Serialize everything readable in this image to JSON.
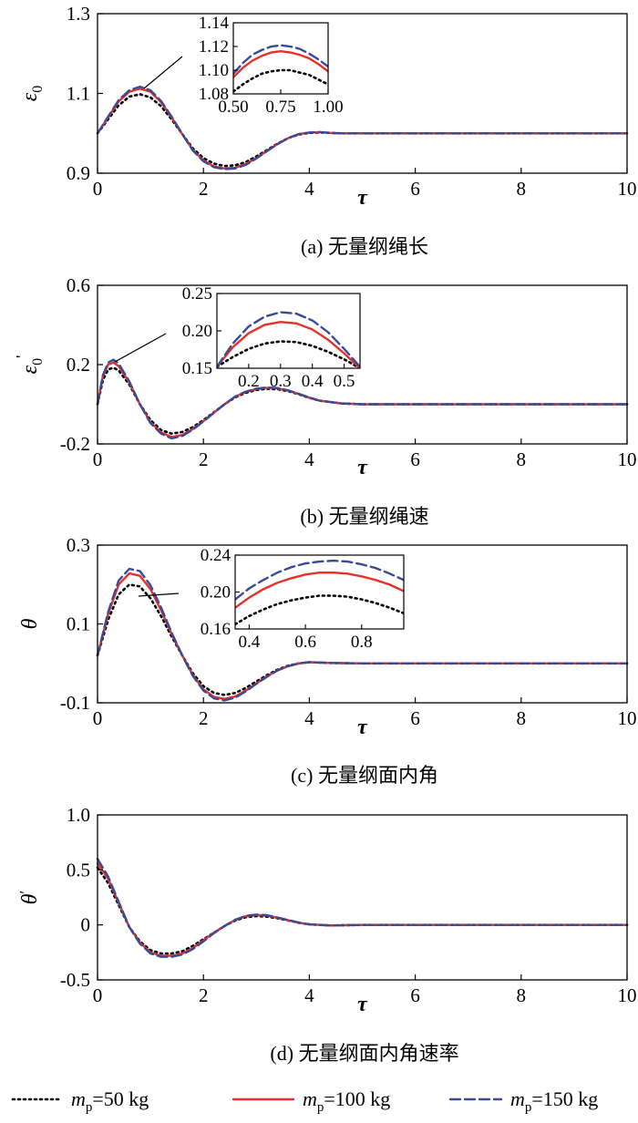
{
  "colors": {
    "mp50": "#000000",
    "mp100": "#e8302a",
    "mp150": "#3a4a9a"
  },
  "legend": {
    "placement": "bottom",
    "entries": [
      {
        "pre": "m",
        "sub": "p",
        "post": "=50 kg",
        "style": "dotted"
      },
      {
        "pre": "m",
        "sub": "p",
        "post": "=100 kg",
        "style": "solid"
      },
      {
        "pre": "m",
        "sub": "p",
        "post": "=150 kg",
        "style": "dashed"
      }
    ]
  },
  "chart_data": [
    {
      "type": "line",
      "caption": "(a) 无量纲绳长",
      "xlabel": "τ",
      "ylabel": "ε",
      "ylabel_sub": "0",
      "ylabel_sup": "",
      "xlim": [
        0,
        10
      ],
      "ylim": [
        0.9,
        1.3
      ],
      "xticks": [
        "0",
        "2",
        "4",
        "6",
        "8",
        "10"
      ],
      "yticks": [
        "0.9",
        "1.1",
        "1.3"
      ],
      "ytick_values": [
        0.9,
        1.1,
        1.3
      ],
      "x": [
        0,
        0.2,
        0.4,
        0.6,
        0.8,
        1.0,
        1.2,
        1.4,
        1.6,
        1.8,
        2.0,
        2.2,
        2.4,
        2.6,
        2.8,
        3.0,
        3.2,
        3.4,
        3.6,
        3.8,
        4.0,
        4.2,
        4.4,
        4.6,
        5.0,
        6.0,
        7.0,
        8.0,
        9.0,
        10.0
      ],
      "series": [
        {
          "key": "mp50",
          "values": [
            1.0,
            1.035,
            1.07,
            1.092,
            1.098,
            1.09,
            1.068,
            1.035,
            0.998,
            0.962,
            0.938,
            0.924,
            0.918,
            0.92,
            0.928,
            0.942,
            0.958,
            0.974,
            0.988,
            0.997,
            1.001,
            1.002,
            1.001,
            1.0,
            1.0,
            1.0,
            1.0,
            1.0,
            1.0,
            1.0
          ]
        },
        {
          "key": "mp100",
          "values": [
            1.0,
            1.04,
            1.08,
            1.104,
            1.112,
            1.104,
            1.078,
            1.04,
            0.998,
            0.958,
            0.932,
            0.917,
            0.912,
            0.914,
            0.923,
            0.938,
            0.956,
            0.973,
            0.988,
            0.998,
            1.002,
            1.003,
            1.001,
            1.0,
            1.0,
            1.0,
            1.0,
            1.0,
            1.0,
            1.0
          ]
        },
        {
          "key": "mp150",
          "values": [
            1.0,
            1.042,
            1.083,
            1.108,
            1.117,
            1.108,
            1.081,
            1.042,
            0.998,
            0.957,
            0.93,
            0.915,
            0.91,
            0.912,
            0.921,
            0.937,
            0.955,
            0.973,
            0.988,
            0.998,
            1.002,
            1.003,
            1.001,
            1.0,
            1.0,
            1.0,
            1.0,
            1.0,
            1.0,
            1.0
          ]
        }
      ],
      "inset": {
        "xlim": [
          0.5,
          1.0
        ],
        "ylim": [
          1.08,
          1.14
        ],
        "xticks": [
          "0.50",
          "0.75",
          "1.00"
        ],
        "xtick_values": [
          0.5,
          0.75,
          1.0
        ],
        "yticks": [
          "1.08",
          "1.10",
          "1.12",
          "1.14"
        ],
        "ytick_values": [
          1.08,
          1.1,
          1.12,
          1.14
        ],
        "x": [
          0.5,
          0.55,
          0.6,
          0.65,
          0.7,
          0.75,
          0.8,
          0.85,
          0.9,
          0.95,
          1.0
        ],
        "series": [
          {
            "key": "mp50",
            "values": [
              1.082,
              1.088,
              1.093,
              1.097,
              1.099,
              1.1,
              1.1,
              1.098,
              1.096,
              1.092,
              1.088
            ]
          },
          {
            "key": "mp100",
            "values": [
              1.094,
              1.102,
              1.108,
              1.112,
              1.115,
              1.116,
              1.115,
              1.113,
              1.11,
              1.105,
              1.099
            ]
          },
          {
            "key": "mp150",
            "values": [
              1.097,
              1.106,
              1.113,
              1.117,
              1.12,
              1.121,
              1.12,
              1.118,
              1.114,
              1.109,
              1.103
            ]
          }
        ]
      }
    },
    {
      "type": "line",
      "caption": "(b) 无量纲绳速",
      "xlabel": "τ",
      "ylabel": "ε",
      "ylabel_sub": "0",
      "ylabel_sup": "'",
      "xlim": [
        0,
        10
      ],
      "ylim": [
        -0.2,
        0.6
      ],
      "xticks": [
        "0",
        "2",
        "4",
        "6",
        "8",
        "10"
      ],
      "yticks": [
        "-0.2",
        "0.2",
        "0.6"
      ],
      "ytick_values": [
        -0.2,
        0.2,
        0.6
      ],
      "x": [
        0,
        0.1,
        0.2,
        0.3,
        0.4,
        0.6,
        0.8,
        1.0,
        1.2,
        1.4,
        1.6,
        1.8,
        2.0,
        2.2,
        2.4,
        2.6,
        2.8,
        3.0,
        3.2,
        3.4,
        3.6,
        3.8,
        4.0,
        4.2,
        4.6,
        5.0,
        6.0,
        7.0,
        8.0,
        9.0,
        10.0
      ],
      "series": [
        {
          "key": "mp50",
          "values": [
            0.0,
            0.12,
            0.175,
            0.185,
            0.17,
            0.1,
            0.0,
            -0.08,
            -0.13,
            -0.148,
            -0.14,
            -0.115,
            -0.08,
            -0.04,
            0.0,
            0.035,
            0.058,
            0.072,
            0.078,
            0.076,
            0.066,
            0.05,
            0.032,
            0.018,
            0.004,
            0.0,
            0.0,
            0.0,
            0.0,
            0.0,
            0.0
          ]
        },
        {
          "key": "mp100",
          "values": [
            0.0,
            0.14,
            0.2,
            0.21,
            0.192,
            0.11,
            0.0,
            -0.09,
            -0.142,
            -0.165,
            -0.155,
            -0.125,
            -0.085,
            -0.042,
            0.0,
            0.038,
            0.062,
            0.077,
            0.083,
            0.08,
            0.069,
            0.052,
            0.033,
            0.018,
            0.004,
            0.0,
            0.0,
            0.0,
            0.0,
            0.0,
            0.0
          ]
        },
        {
          "key": "mp150",
          "values": [
            0.0,
            0.145,
            0.21,
            0.225,
            0.205,
            0.115,
            0.0,
            -0.095,
            -0.148,
            -0.172,
            -0.16,
            -0.128,
            -0.087,
            -0.043,
            0.0,
            0.039,
            0.064,
            0.079,
            0.085,
            0.082,
            0.07,
            0.053,
            0.034,
            0.018,
            0.004,
            0.0,
            0.0,
            0.0,
            0.0,
            0.0,
            0.0
          ]
        }
      ],
      "inset": {
        "xlim": [
          0.1,
          0.55
        ],
        "ylim": [
          0.15,
          0.25
        ],
        "xticks": [
          "0.2",
          "0.3",
          "0.4",
          "0.5"
        ],
        "xtick_values": [
          0.2,
          0.3,
          0.4,
          0.5
        ],
        "yticks": [
          "0.15",
          "0.20",
          "0.25"
        ],
        "ytick_values": [
          0.15,
          0.2,
          0.25
        ],
        "x": [
          0.1,
          0.15,
          0.2,
          0.25,
          0.3,
          0.35,
          0.4,
          0.45,
          0.5,
          0.55
        ],
        "series": [
          {
            "key": "mp50",
            "values": [
              0.152,
              0.165,
              0.176,
              0.183,
              0.186,
              0.185,
              0.18,
              0.172,
              0.162,
              0.15
            ]
          },
          {
            "key": "mp100",
            "values": [
              0.152,
              0.178,
              0.197,
              0.208,
              0.212,
              0.21,
              0.202,
              0.188,
              0.17,
              0.15
            ]
          },
          {
            "key": "mp150",
            "values": [
              0.152,
              0.183,
              0.206,
              0.219,
              0.225,
              0.223,
              0.214,
              0.198,
              0.176,
              0.152
            ]
          }
        ]
      }
    },
    {
      "type": "line",
      "caption": "(c) 无量纲面内角",
      "xlabel": "τ",
      "ylabel": "θ",
      "ylabel_sub": "",
      "ylabel_sup": "",
      "xlim": [
        0,
        10
      ],
      "ylim": [
        -0.1,
        0.3
      ],
      "xticks": [
        "0",
        "2",
        "4",
        "6",
        "8",
        "10"
      ],
      "yticks": [
        "-0.1",
        "0.1",
        "0.3"
      ],
      "ytick_values": [
        -0.1,
        0.1,
        0.3
      ],
      "x": [
        0,
        0.2,
        0.4,
        0.6,
        0.8,
        1.0,
        1.2,
        1.4,
        1.6,
        1.8,
        2.0,
        2.2,
        2.4,
        2.6,
        2.8,
        3.0,
        3.2,
        3.4,
        3.6,
        3.8,
        4.0,
        4.4,
        5.0,
        6.0,
        7.0,
        8.0,
        9.0,
        10.0
      ],
      "series": [
        {
          "key": "mp50",
          "values": [
            0.02,
            0.11,
            0.175,
            0.2,
            0.195,
            0.165,
            0.12,
            0.068,
            0.02,
            -0.025,
            -0.058,
            -0.075,
            -0.08,
            -0.075,
            -0.062,
            -0.046,
            -0.03,
            -0.016,
            -0.006,
            0.0,
            0.003,
            0.001,
            0.0,
            0.0,
            0.0,
            0.0,
            0.0,
            0.0
          ]
        },
        {
          "key": "mp100",
          "values": [
            0.02,
            0.125,
            0.2,
            0.228,
            0.222,
            0.188,
            0.135,
            0.075,
            0.02,
            -0.03,
            -0.066,
            -0.085,
            -0.09,
            -0.084,
            -0.069,
            -0.051,
            -0.033,
            -0.018,
            -0.007,
            0.0,
            0.003,
            0.001,
            0.0,
            0.0,
            0.0,
            0.0,
            0.0,
            0.0
          ]
        },
        {
          "key": "mp150",
          "values": [
            0.02,
            0.13,
            0.21,
            0.24,
            0.234,
            0.198,
            0.142,
            0.078,
            0.02,
            -0.032,
            -0.069,
            -0.089,
            -0.094,
            -0.087,
            -0.071,
            -0.052,
            -0.034,
            -0.018,
            -0.007,
            0.0,
            0.003,
            0.001,
            0.0,
            0.0,
            0.0,
            0.0,
            0.0,
            0.0
          ]
        }
      ],
      "inset": {
        "xlim": [
          0.35,
          0.95
        ],
        "ylim": [
          0.16,
          0.24
        ],
        "xticks": [
          "0.4",
          "0.6",
          "0.8"
        ],
        "xtick_values": [
          0.4,
          0.6,
          0.8
        ],
        "yticks": [
          "0.16",
          "0.20",
          "0.24"
        ],
        "ytick_values": [
          0.16,
          0.2,
          0.24
        ],
        "x": [
          0.35,
          0.4,
          0.45,
          0.5,
          0.55,
          0.6,
          0.65,
          0.7,
          0.75,
          0.8,
          0.85,
          0.9,
          0.95
        ],
        "series": [
          {
            "key": "mp50",
            "values": [
              0.165,
              0.174,
              0.181,
              0.187,
              0.191,
              0.194,
              0.196,
              0.196,
              0.195,
              0.192,
              0.188,
              0.183,
              0.177
            ]
          },
          {
            "key": "mp100",
            "values": [
              0.183,
              0.194,
              0.203,
              0.21,
              0.215,
              0.219,
              0.221,
              0.221,
              0.22,
              0.217,
              0.213,
              0.208,
              0.201
            ]
          },
          {
            "key": "mp150",
            "values": [
              0.192,
              0.204,
              0.213,
              0.221,
              0.227,
              0.231,
              0.233,
              0.234,
              0.233,
              0.23,
              0.226,
              0.22,
              0.213
            ]
          }
        ]
      }
    },
    {
      "type": "line",
      "caption": "(d) 无量纲面内角速率",
      "xlabel": "τ",
      "ylabel": "θ",
      "ylabel_sub": "",
      "ylabel_sup": "′",
      "xlim": [
        0,
        10
      ],
      "ylim": [
        -0.5,
        1.0
      ],
      "xticks": [
        "0",
        "2",
        "4",
        "6",
        "8",
        "10"
      ],
      "yticks": [
        "-0.5",
        "0",
        "0.5",
        "1.0"
      ],
      "ytick_values": [
        -0.5,
        0.0,
        0.5,
        1.0
      ],
      "x": [
        0,
        0.2,
        0.4,
        0.6,
        0.8,
        1.0,
        1.2,
        1.4,
        1.6,
        1.8,
        2.0,
        2.2,
        2.4,
        2.6,
        2.8,
        3.0,
        3.2,
        3.4,
        3.6,
        3.8,
        4.0,
        4.4,
        5.0,
        6.0,
        7.0,
        8.0,
        9.0,
        10.0
      ],
      "series": [
        {
          "key": "mp50",
          "values": [
            0.52,
            0.38,
            0.18,
            -0.02,
            -0.15,
            -0.23,
            -0.26,
            -0.26,
            -0.24,
            -0.19,
            -0.13,
            -0.07,
            -0.01,
            0.04,
            0.07,
            0.08,
            0.075,
            0.06,
            0.04,
            0.02,
            0.005,
            -0.005,
            0.0,
            0.0,
            0.0,
            0.0,
            0.0,
            0.0
          ]
        },
        {
          "key": "mp100",
          "values": [
            0.56,
            0.42,
            0.2,
            -0.02,
            -0.16,
            -0.25,
            -0.28,
            -0.28,
            -0.26,
            -0.21,
            -0.14,
            -0.07,
            -0.01,
            0.045,
            0.08,
            0.09,
            0.085,
            0.065,
            0.042,
            0.02,
            0.005,
            -0.005,
            0.0,
            0.0,
            0.0,
            0.0,
            0.0,
            0.0
          ]
        },
        {
          "key": "mp150",
          "values": [
            0.6,
            0.44,
            0.21,
            -0.02,
            -0.17,
            -0.26,
            -0.29,
            -0.29,
            -0.27,
            -0.22,
            -0.15,
            -0.075,
            -0.01,
            0.047,
            0.083,
            0.094,
            0.088,
            0.068,
            0.044,
            0.021,
            0.005,
            -0.005,
            0.0,
            0.0,
            0.0,
            0.0,
            0.0,
            0.0
          ]
        }
      ]
    }
  ]
}
